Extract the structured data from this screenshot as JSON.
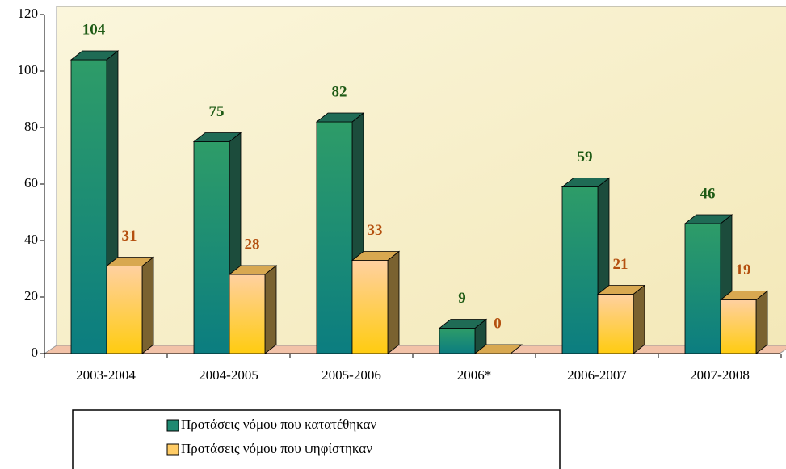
{
  "chart_data": {
    "type": "bar3d",
    "categories": [
      "2003-2004",
      "2004-2005",
      "2005-2006",
      "2006*",
      "2006-2007",
      "2007-2008"
    ],
    "series": [
      {
        "name": "Προτάσεις νόμου που κατατέθηκαν",
        "color": "#1f8a72",
        "values": [
          104,
          75,
          82,
          9,
          59,
          46
        ]
      },
      {
        "name": "Προτάσεις νόμου που ψηφίστηκαν",
        "color": "#ffcc66",
        "values": [
          31,
          28,
          33,
          0,
          21,
          19
        ]
      }
    ],
    "ylim": [
      0,
      120
    ],
    "yticks": [
      0,
      20,
      40,
      60,
      80,
      100,
      120
    ],
    "legend": "bottom-left"
  }
}
